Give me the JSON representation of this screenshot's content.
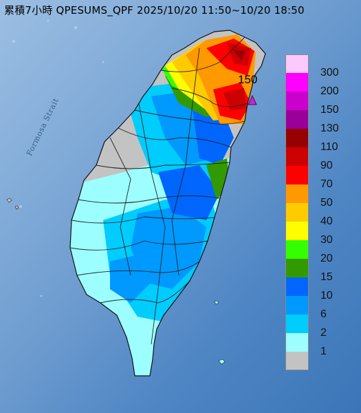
{
  "title": "累積7小時 QPESUMS_QPF 2025/10/20 11:50~10/20 18:50",
  "sea_label": "Formosa Strait",
  "max_marker": {
    "label": "150",
    "color": "#d21fd8"
  },
  "legend": [
    {
      "label": "300",
      "color": "#fdc8fe"
    },
    {
      "label": "200",
      "color": "#fe00fe"
    },
    {
      "label": "150",
      "color": "#cc00cc"
    },
    {
      "label": "130",
      "color": "#9a0099"
    },
    {
      "label": "110",
      "color": "#960000"
    },
    {
      "label": "90",
      "color": "#cc0000"
    },
    {
      "label": "70",
      "color": "#fe0000"
    },
    {
      "label": "50",
      "color": "#fe9900"
    },
    {
      "label": "40",
      "color": "#fecb00"
    },
    {
      "label": "30",
      "color": "#fefe00"
    },
    {
      "label": "20",
      "color": "#33ff00"
    },
    {
      "label": "15",
      "color": "#339900"
    },
    {
      "label": "10",
      "color": "#0066fe"
    },
    {
      "label": "6",
      "color": "#0099fe"
    },
    {
      "label": "2",
      "color": "#00ccfe"
    },
    {
      "label": "1",
      "color": "#9cfefe"
    },
    {
      "label": "",
      "color": "#c3c3c3"
    }
  ],
  "colors": {
    "sea": "#5d8fc8",
    "sea_light": "#8fb3dc"
  }
}
